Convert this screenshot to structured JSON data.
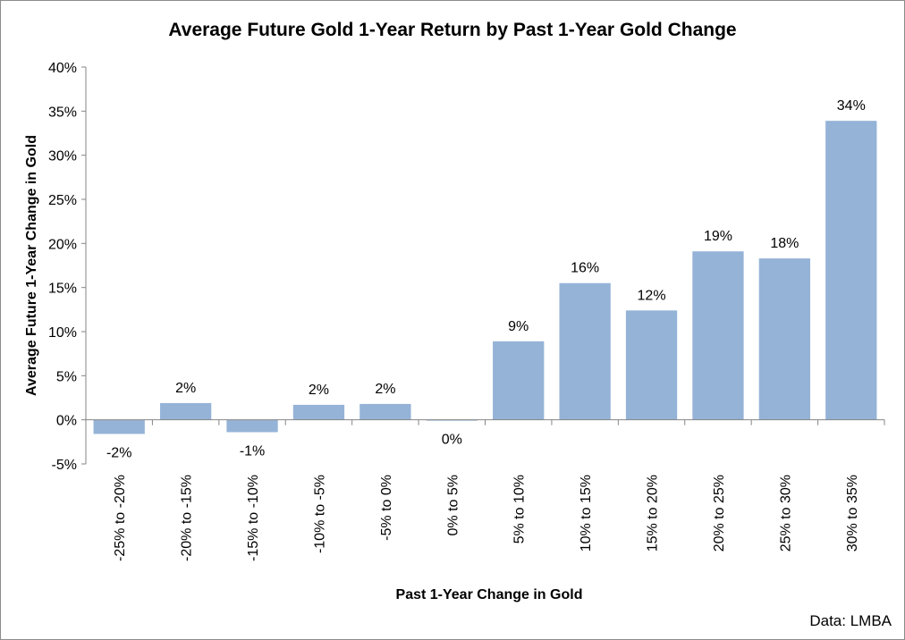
{
  "chart_data": {
    "type": "bar",
    "title": "Average Future Gold 1-Year Return by Past 1-Year Gold Change",
    "xlabel": "Past 1-Year Change in Gold",
    "ylabel": "Average Future 1-Year Change in  Gold",
    "categories": [
      "-25% to -20%",
      "-20% to -15%",
      "-15% to -10%",
      "-10% to -5%",
      "-5% to 0%",
      "0% to 5%",
      "5% to 10%",
      "10% to 15%",
      "15% to 20%",
      "20% to 25%",
      "25% to 30%",
      "30% to 35%"
    ],
    "values": [
      -1.6,
      1.9,
      -1.4,
      1.7,
      1.8,
      -0.1,
      8.9,
      15.5,
      12.4,
      19.1,
      18.3,
      33.9
    ],
    "data_labels": [
      "-2%",
      "2%",
      "-1%",
      "2%",
      "2%",
      "0%",
      "9%",
      "16%",
      "12%",
      "19%",
      "18%",
      "34%"
    ],
    "ylim": [
      -5,
      40
    ],
    "yticks": [
      -5,
      0,
      5,
      10,
      15,
      20,
      25,
      30,
      35,
      40
    ],
    "ytick_labels": [
      "-5%",
      "0%",
      "5%",
      "10%",
      "15%",
      "20%",
      "25%",
      "30%",
      "35%",
      "40%"
    ],
    "grid": false,
    "legend": "none",
    "bar_color": "#95b3d7",
    "source": "Data: LMBA"
  }
}
